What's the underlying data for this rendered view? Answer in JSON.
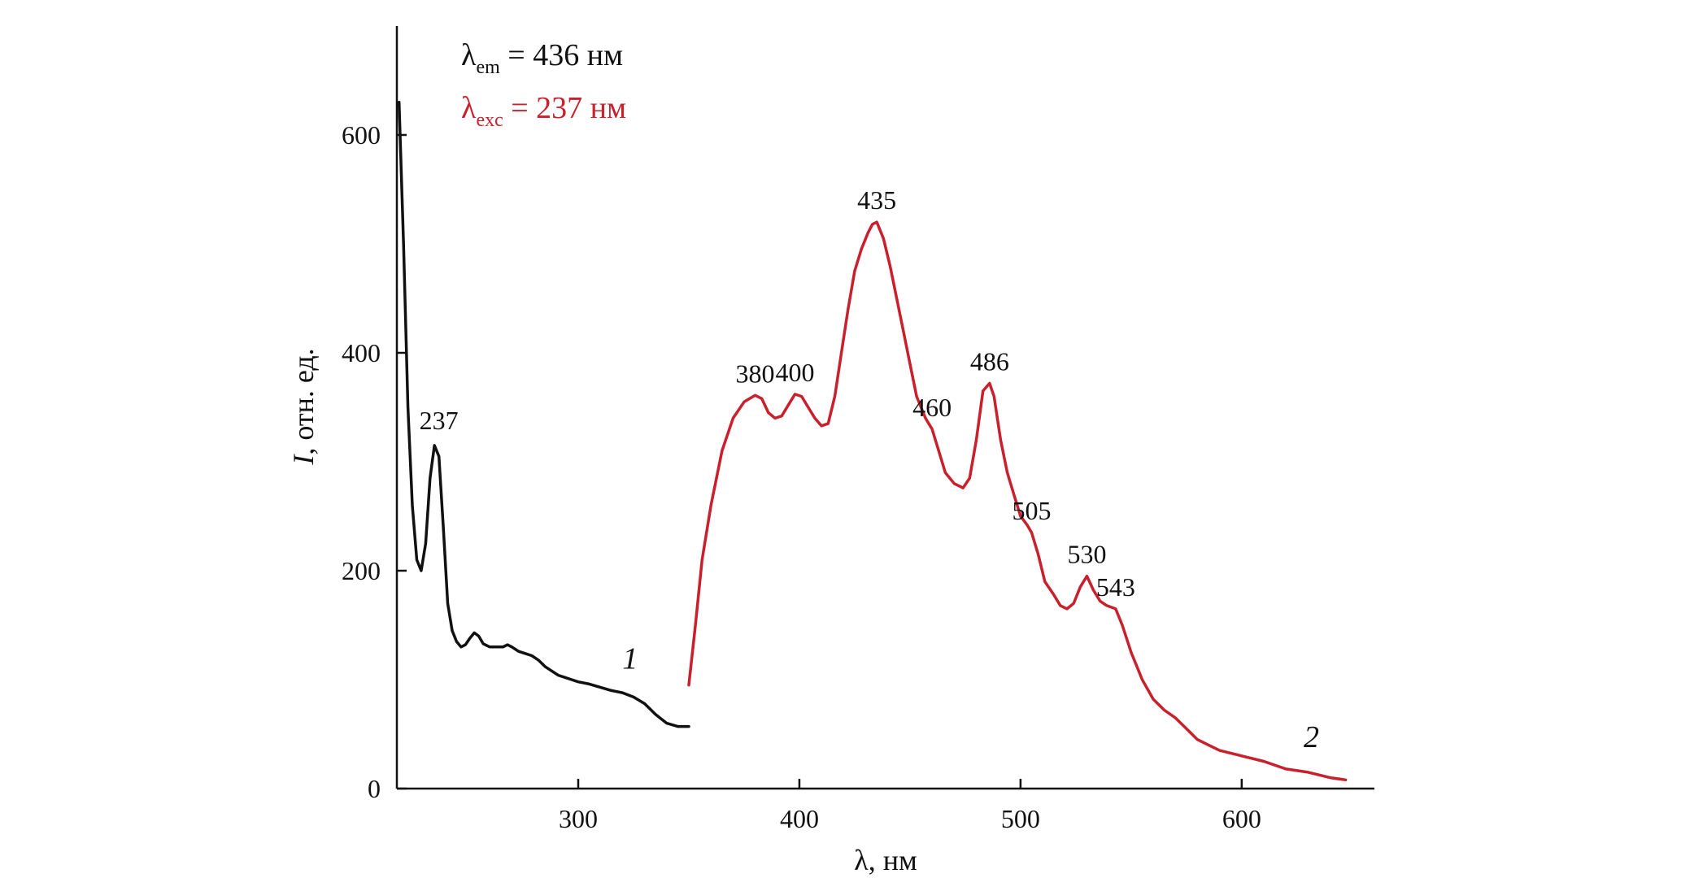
{
  "chart_data": {
    "type": "line",
    "xlabel": "λ, нм",
    "ylabel_italic": "I",
    "ylabel_rest": ", отн. ед.",
    "xlim": [
      218,
      660
    ],
    "ylim": [
      0,
      700
    ],
    "xticks": [
      300,
      400,
      500,
      600
    ],
    "yticks": [
      0,
      200,
      400,
      600
    ],
    "grid": false,
    "legend": {
      "em": {
        "base": "λ",
        "sub": "em",
        "rest": " = 436 нм",
        "color": "#111111"
      },
      "exc": {
        "base": "λ",
        "sub": "exc",
        "rest": " = 237 нм",
        "color": "#c8202d"
      }
    },
    "series": [
      {
        "label": "1",
        "color": "#111111",
        "points": [
          [
            219,
            630
          ],
          [
            221,
            500
          ],
          [
            223,
            350
          ],
          [
            225,
            260
          ],
          [
            227,
            210
          ],
          [
            229,
            200
          ],
          [
            231,
            225
          ],
          [
            233,
            285
          ],
          [
            235,
            315
          ],
          [
            237,
            305
          ],
          [
            239,
            240
          ],
          [
            241,
            170
          ],
          [
            243,
            145
          ],
          [
            245,
            135
          ],
          [
            247,
            130
          ],
          [
            249,
            132
          ],
          [
            251,
            138
          ],
          [
            253,
            143
          ],
          [
            255,
            140
          ],
          [
            257,
            133
          ],
          [
            260,
            130
          ],
          [
            263,
            130
          ],
          [
            266,
            130
          ],
          [
            268,
            132
          ],
          [
            270,
            130
          ],
          [
            273,
            126
          ],
          [
            276,
            124
          ],
          [
            279,
            122
          ],
          [
            282,
            118
          ],
          [
            285,
            112
          ],
          [
            288,
            108
          ],
          [
            291,
            104
          ],
          [
            294,
            102
          ],
          [
            297,
            100
          ],
          [
            300,
            98
          ],
          [
            305,
            96
          ],
          [
            310,
            93
          ],
          [
            315,
            90
          ],
          [
            320,
            88
          ],
          [
            325,
            84
          ],
          [
            330,
            78
          ],
          [
            335,
            68
          ],
          [
            340,
            60
          ],
          [
            345,
            57
          ],
          [
            350,
            57
          ]
        ],
        "label_position": [
          320,
          110
        ]
      },
      {
        "label": "2",
        "color": "#c8202d",
        "points": [
          [
            350,
            95
          ],
          [
            353,
            150
          ],
          [
            356,
            210
          ],
          [
            360,
            260
          ],
          [
            365,
            310
          ],
          [
            370,
            340
          ],
          [
            375,
            355
          ],
          [
            380,
            361
          ],
          [
            383,
            358
          ],
          [
            386,
            345
          ],
          [
            389,
            340
          ],
          [
            392,
            342
          ],
          [
            395,
            352
          ],
          [
            398,
            362
          ],
          [
            401,
            360
          ],
          [
            404,
            350
          ],
          [
            407,
            340
          ],
          [
            410,
            333
          ],
          [
            413,
            335
          ],
          [
            416,
            360
          ],
          [
            419,
            400
          ],
          [
            422,
            440
          ],
          [
            425,
            475
          ],
          [
            428,
            495
          ],
          [
            431,
            510
          ],
          [
            433,
            518
          ],
          [
            435,
            520
          ],
          [
            438,
            505
          ],
          [
            441,
            480
          ],
          [
            444,
            450
          ],
          [
            447,
            420
          ],
          [
            450,
            390
          ],
          [
            453,
            360
          ],
          [
            457,
            340
          ],
          [
            460,
            330
          ],
          [
            463,
            310
          ],
          [
            466,
            290
          ],
          [
            470,
            280
          ],
          [
            474,
            276
          ],
          [
            477,
            285
          ],
          [
            480,
            320
          ],
          [
            483,
            365
          ],
          [
            486,
            372
          ],
          [
            488,
            360
          ],
          [
            491,
            320
          ],
          [
            494,
            290
          ],
          [
            497,
            270
          ],
          [
            500,
            250
          ],
          [
            503,
            242
          ],
          [
            505,
            235
          ],
          [
            508,
            215
          ],
          [
            511,
            190
          ],
          [
            515,
            178
          ],
          [
            518,
            168
          ],
          [
            521,
            165
          ],
          [
            524,
            170
          ],
          [
            527,
            185
          ],
          [
            530,
            195
          ],
          [
            533,
            182
          ],
          [
            536,
            172
          ],
          [
            539,
            168
          ],
          [
            543,
            165
          ],
          [
            546,
            150
          ],
          [
            550,
            125
          ],
          [
            555,
            100
          ],
          [
            560,
            82
          ],
          [
            565,
            72
          ],
          [
            570,
            65
          ],
          [
            575,
            55
          ],
          [
            580,
            45
          ],
          [
            585,
            40
          ],
          [
            590,
            35
          ],
          [
            600,
            30
          ],
          [
            610,
            25
          ],
          [
            620,
            18
          ],
          [
            630,
            15
          ],
          [
            640,
            10
          ],
          [
            647,
            8
          ]
        ],
        "label_position": [
          628,
          38
        ]
      }
    ],
    "peak_labels": [
      {
        "text": "237",
        "x": 237,
        "y": 318,
        "series": 0
      },
      {
        "text": "380",
        "x": 380,
        "y": 361,
        "series": 1
      },
      {
        "text": "400",
        "x": 398,
        "y": 362,
        "series": 1
      },
      {
        "text": "435",
        "x": 435,
        "y": 520,
        "series": 1
      },
      {
        "text": "460",
        "x": 460,
        "y": 330,
        "series": 1
      },
      {
        "text": "486",
        "x": 486,
        "y": 372,
        "series": 1
      },
      {
        "text": "505",
        "x": 505,
        "y": 235,
        "series": 1
      },
      {
        "text": "530",
        "x": 530,
        "y": 195,
        "series": 1
      },
      {
        "text": "543",
        "x": 543,
        "y": 165,
        "series": 1
      }
    ]
  }
}
